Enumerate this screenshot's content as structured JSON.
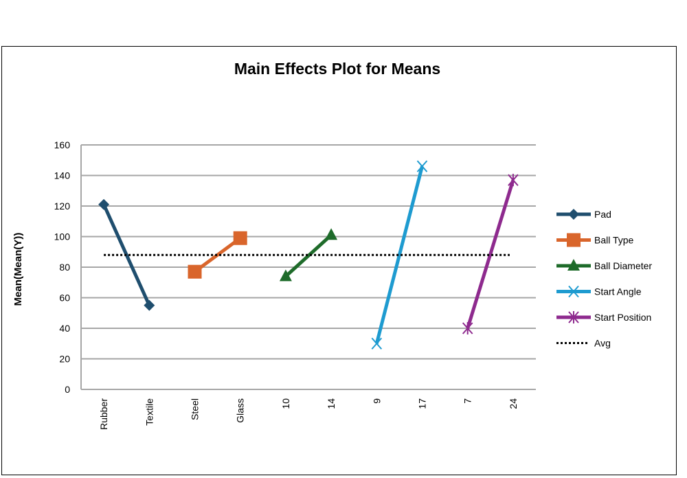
{
  "chart_data": {
    "type": "line",
    "title": "Main Effects Plot for Means",
    "xlabel": "",
    "ylabel": "Mean(Mean(Y))",
    "ylim": [
      0,
      160
    ],
    "yticks": [
      0,
      20,
      40,
      60,
      80,
      100,
      120,
      140,
      160
    ],
    "grid": true,
    "legend_position": "right",
    "categories": [
      "Rubber",
      "Textile",
      "Steel",
      "Glass",
      "10",
      "14",
      "9",
      "17",
      "7",
      "24"
    ],
    "series": [
      {
        "name": "Pad",
        "color": "#1f4e6e",
        "marker": "diamond",
        "points": [
          {
            "category": "Rubber",
            "value": 121
          },
          {
            "category": "Textile",
            "value": 55
          }
        ]
      },
      {
        "name": "Ball Type",
        "color": "#d9652b",
        "marker": "square",
        "points": [
          {
            "category": "Steel",
            "value": 77
          },
          {
            "category": "Glass",
            "value": 99
          }
        ]
      },
      {
        "name": "Ball Diameter",
        "color": "#1e6b2a",
        "marker": "triangle",
        "points": [
          {
            "category": "10",
            "value": 74
          },
          {
            "category": "14",
            "value": 101
          }
        ]
      },
      {
        "name": "Start Angle",
        "color": "#1e9bd0",
        "marker": "x",
        "points": [
          {
            "category": "9",
            "value": 30
          },
          {
            "category": "17",
            "value": 146
          }
        ]
      },
      {
        "name": "Start Position",
        "color": "#8e2a8e",
        "marker": "star",
        "points": [
          {
            "category": "7",
            "value": 40
          },
          {
            "category": "24",
            "value": 137
          }
        ]
      },
      {
        "name": "Avg",
        "color": "#000000",
        "marker": "dotted",
        "value": 88
      }
    ]
  }
}
